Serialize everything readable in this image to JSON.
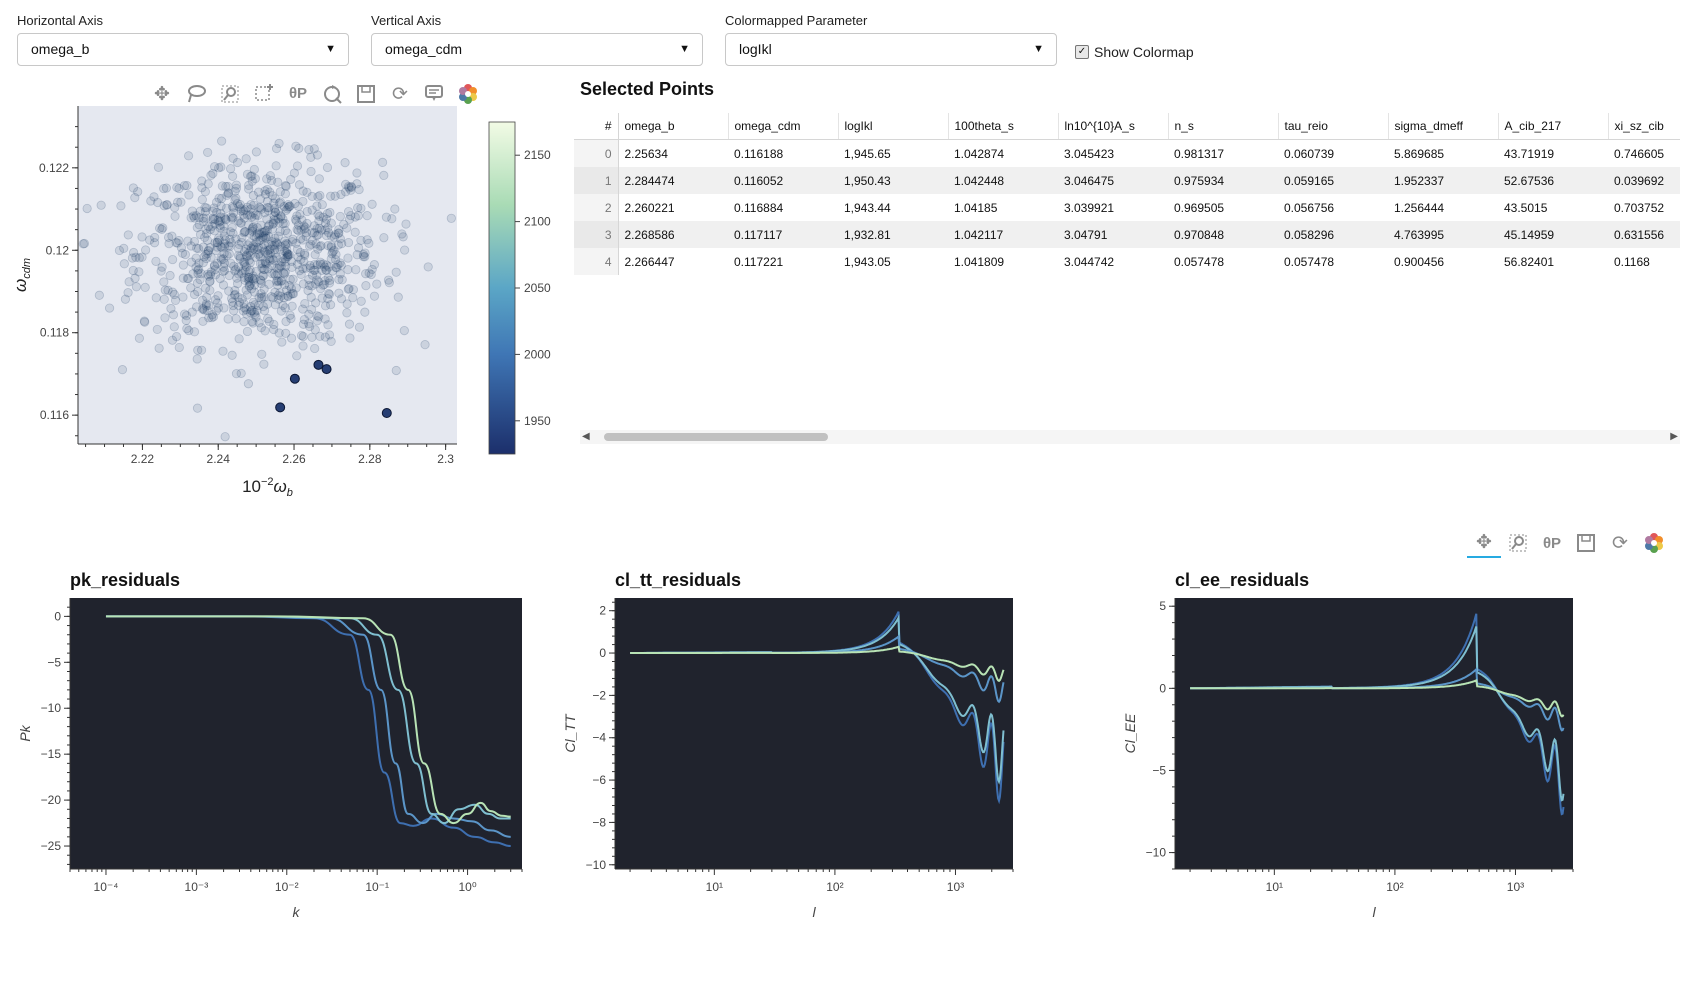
{
  "controls": {
    "horizontal_axis": {
      "label": "Horizontal Axis",
      "value": "omega_b"
    },
    "vertical_axis": {
      "label": "Vertical Axis",
      "value": "omega_cdm"
    },
    "colormapped": {
      "label": "Colormapped Parameter",
      "value": "logIkl"
    },
    "show_colormap": {
      "label": "Show Colormap",
      "checked": true
    }
  },
  "scatter_toolbar": [
    "pan-icon",
    "lasso-icon",
    "box-zoom-icon",
    "box-select-icon",
    "wheel-zoom-icon",
    "reset-icon",
    "save-icon",
    "refresh-icon",
    "hover-icon",
    "bokeh-logo-icon"
  ],
  "bottom_toolbar": [
    "pan-icon",
    "box-zoom-icon",
    "wheel-zoom-icon",
    "save-icon",
    "refresh-icon",
    "bokeh-logo-icon"
  ],
  "table": {
    "title": "Selected Points",
    "columns": [
      "#",
      "omega_b",
      "omega_cdm",
      "logIkl",
      "100theta_s",
      "ln10^{10}A_s",
      "n_s",
      "tau_reio",
      "sigma_dmeff",
      "A_cib_217",
      "xi_sz_cib"
    ],
    "rows": [
      [
        "0",
        "2.25634",
        "0.116188",
        "1,945.65",
        "1.042874",
        "3.045423",
        "0.981317",
        "0.060739",
        "5.869685",
        "43.71919",
        "0.746605"
      ],
      [
        "1",
        "2.284474",
        "0.116052",
        "1,950.43",
        "1.042448",
        "3.046475",
        "0.975934",
        "0.059165",
        "1.952337",
        "52.67536",
        "0.039692"
      ],
      [
        "2",
        "2.260221",
        "0.116884",
        "1,943.44",
        "1.04185",
        "3.039921",
        "0.969505",
        "0.056756",
        "1.256444",
        "43.5015",
        "0.703752"
      ],
      [
        "3",
        "2.268586",
        "0.117117",
        "1,932.81",
        "1.042117",
        "3.04791",
        "0.970848",
        "0.058296",
        "4.763995",
        "45.14959",
        "0.631556"
      ],
      [
        "4",
        "2.266447",
        "0.117221",
        "1,943.05",
        "1.041809",
        "3.044742",
        "0.057478",
        "0.057478",
        "0.900456",
        "56.82401",
        "0.1168"
      ]
    ]
  },
  "chart_data": [
    {
      "type": "scatter",
      "title": "",
      "xlabel": "10^{-2} ω_b",
      "ylabel": "ω_cdm",
      "xlim": [
        2.203,
        2.303
      ],
      "ylim": [
        0.1153,
        0.1235
      ],
      "x_ticks": [
        "2.22",
        "2.24",
        "2.26",
        "2.28",
        "2.3"
      ],
      "y_ticks": [
        "0.116",
        "0.118",
        "0.12",
        "0.122"
      ],
      "background_points": {
        "count": 900,
        "center": [
          2.251,
          0.1199
        ],
        "spread": [
          0.016,
          0.0011
        ],
        "color": "#1d3b63"
      },
      "selected_points": [
        {
          "x": 2.25634,
          "y": 0.116188
        },
        {
          "x": 2.284474,
          "y": 0.116052
        },
        {
          "x": 2.260221,
          "y": 0.116884
        },
        {
          "x": 2.268586,
          "y": 0.117117
        },
        {
          "x": 2.266447,
          "y": 0.117221
        }
      ],
      "colorbar": {
        "ticks": [
          "1950",
          "2000",
          "2050",
          "2100",
          "2150"
        ],
        "range": [
          1925,
          2175
        ]
      }
    },
    {
      "type": "line",
      "title": "pk_residuals",
      "xlabel": "k",
      "ylabel": "Pk",
      "x_scale": "log",
      "xlim": [
        4e-05,
        4
      ],
      "ylim": [
        -27.5,
        2
      ],
      "x_ticks": [
        "10⁻⁴",
        "10⁻³",
        "10⁻²",
        "10⁻¹",
        "10⁰"
      ],
      "y_ticks": [
        "0",
        "−5",
        "−10",
        "−15",
        "−20",
        "−25"
      ],
      "series": [
        {
          "x": [
            0.0001,
            0.003,
            0.02,
            0.05,
            0.08,
            0.12,
            0.18,
            0.25,
            0.4,
            0.7,
            1.2,
            2,
            3
          ],
          "y": [
            0,
            0,
            -0.2,
            -2,
            -8,
            -17,
            -22.5,
            -22.8,
            -22,
            -23,
            -24,
            -24.6,
            -25
          ],
          "color": "#3e6fb0"
        },
        {
          "x": [
            0.0001,
            0.004,
            0.03,
            0.07,
            0.11,
            0.16,
            0.22,
            0.32,
            0.45,
            0.7,
            1.1,
            1.8,
            3
          ],
          "y": [
            0,
            0,
            -0.2,
            -2,
            -8,
            -16,
            -21.5,
            -22.5,
            -21.5,
            -22,
            -22.3,
            -23.3,
            -24
          ],
          "color": "#5b95c8"
        },
        {
          "x": [
            0.0001,
            0.006,
            0.05,
            0.1,
            0.17,
            0.27,
            0.4,
            0.55,
            0.8,
            1.2,
            1.7,
            2.3,
            3
          ],
          "y": [
            0,
            0,
            -0.2,
            -2,
            -8,
            -16,
            -21.5,
            -22.5,
            -21,
            -20.5,
            -21.5,
            -22,
            -22
          ],
          "color": "#7fbfd0"
        },
        {
          "x": [
            0.0001,
            0.008,
            0.07,
            0.14,
            0.22,
            0.33,
            0.5,
            0.7,
            1,
            1.4,
            1.8,
            2.4,
            3
          ],
          "y": [
            0,
            0,
            -0.2,
            -2,
            -8,
            -16,
            -21.5,
            -22.5,
            -21.5,
            -20.3,
            -21.2,
            -21.7,
            -21.8
          ],
          "color": "#b8e3b5"
        }
      ]
    },
    {
      "type": "line",
      "title": "cl_tt_residuals",
      "xlabel": "l",
      "ylabel": "Cl_TT",
      "x_scale": "log",
      "xlim": [
        1.5,
        3000
      ],
      "ylim": [
        -10.2,
        2.6
      ],
      "x_ticks": [
        "10¹",
        "10²",
        "10³"
      ],
      "y_ticks": [
        "2",
        "0",
        "−2",
        "−4",
        "−6",
        "−8",
        "−10"
      ],
      "series": [
        {
          "amp": 2.0,
          "tail": -8.5,
          "color": "#3e6fb0"
        },
        {
          "amp": 1.7,
          "tail": -7.4,
          "color": "#7fbfd0"
        },
        {
          "amp": 0.8,
          "tail": -2.8,
          "color": "#5b95c8"
        },
        {
          "amp": 0.3,
          "tail": -1.6,
          "color": "#b8e3b5"
        }
      ]
    },
    {
      "type": "line",
      "title": "cl_ee_residuals",
      "xlabel": "l",
      "ylabel": "Cl_EE",
      "x_scale": "log",
      "xlim": [
        1.5,
        3000
      ],
      "ylim": [
        -11,
        5.5
      ],
      "x_ticks": [
        "10¹",
        "10²",
        "10³"
      ],
      "y_ticks": [
        "5",
        "0",
        "−5",
        "−10"
      ],
      "series": [
        {
          "amp": 4.7,
          "tail": -9,
          "color": "#3e6fb0"
        },
        {
          "amp": 3.9,
          "tail": -8,
          "color": "#7fbfd0"
        },
        {
          "amp": 1.2,
          "tail": -3,
          "color": "#5b95c8"
        },
        {
          "amp": 0.5,
          "tail": -2,
          "color": "#b8e3b5"
        }
      ]
    }
  ]
}
